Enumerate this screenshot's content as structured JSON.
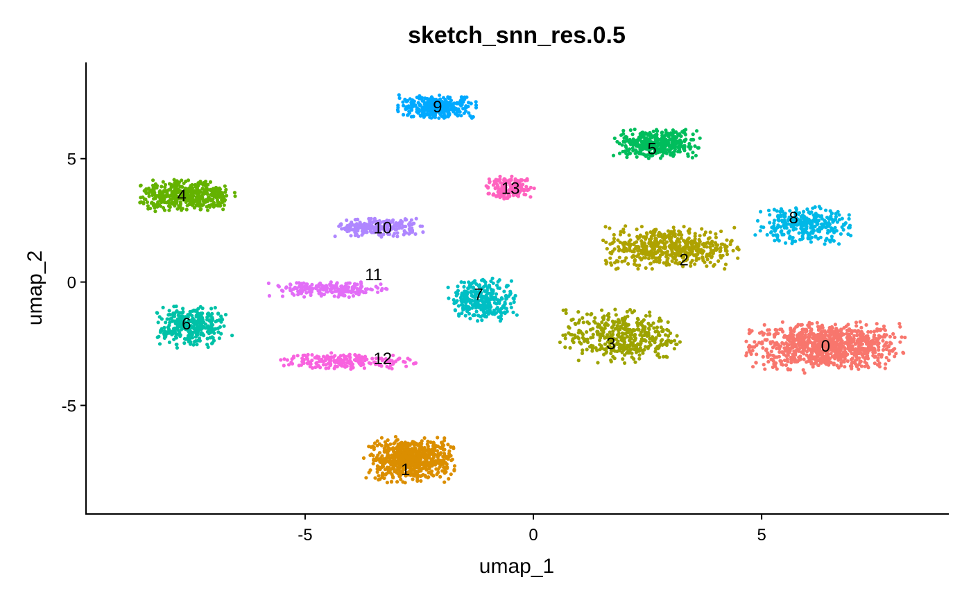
{
  "chart_data": {
    "type": "scatter",
    "title": "sketch_snn_res.0.5",
    "xlabel": "umap_1",
    "ylabel": "umap_2",
    "xlim": [
      -9.8,
      9.1
    ],
    "ylim": [
      -9.4,
      8.9
    ],
    "x_ticks": [
      -5,
      0,
      5
    ],
    "x_tick_labels": [
      "-5",
      "0",
      "5"
    ],
    "y_ticks": [
      -5,
      0,
      5
    ],
    "y_tick_labels": [
      "-5",
      "0",
      "5"
    ],
    "grid": false,
    "legend": "none",
    "point_note": "each series lists approximate cluster centroid and the cluster label position",
    "series": [
      {
        "name": "0",
        "color": "#F8766D",
        "label_pos": [
          6.4,
          -2.6
        ],
        "centroid": [
          6.4,
          -2.6
        ],
        "spread": [
          1.6,
          0.9
        ],
        "n": 900
      },
      {
        "name": "1",
        "color": "#DB8E00",
        "label_pos": [
          -2.8,
          -7.6
        ],
        "centroid": [
          -2.7,
          -7.2
        ],
        "spread": [
          0.9,
          0.85
        ],
        "n": 650
      },
      {
        "name": "2",
        "color": "#AEA200",
        "label_pos": [
          3.3,
          0.9
        ],
        "centroid": [
          3.0,
          1.4
        ],
        "spread": [
          1.4,
          0.8
        ],
        "n": 500
      },
      {
        "name": "3",
        "color": "#9DA300",
        "label_pos": [
          1.7,
          -2.5
        ],
        "centroid": [
          1.9,
          -2.2
        ],
        "spread": [
          1.2,
          1.0
        ],
        "n": 420
      },
      {
        "name": "4",
        "color": "#64B200",
        "label_pos": [
          -7.7,
          3.5
        ],
        "centroid": [
          -7.6,
          3.5
        ],
        "spread": [
          1.0,
          0.6
        ],
        "n": 420
      },
      {
        "name": "5",
        "color": "#00BD5C",
        "label_pos": [
          2.6,
          5.4
        ],
        "centroid": [
          2.7,
          5.6
        ],
        "spread": [
          0.9,
          0.55
        ],
        "n": 380
      },
      {
        "name": "6",
        "color": "#00C1A7",
        "label_pos": [
          -7.6,
          -1.7
        ],
        "centroid": [
          -7.5,
          -1.8
        ],
        "spread": [
          0.7,
          0.8
        ],
        "n": 330
      },
      {
        "name": "7",
        "color": "#00BFC4",
        "label_pos": [
          -1.2,
          -0.5
        ],
        "centroid": [
          -1.1,
          -0.7
        ],
        "spread": [
          0.7,
          0.8
        ],
        "n": 300
      },
      {
        "name": "8",
        "color": "#00B8E7",
        "label_pos": [
          5.7,
          2.6
        ],
        "centroid": [
          5.9,
          2.3
        ],
        "spread": [
          1.0,
          0.7
        ],
        "n": 300
      },
      {
        "name": "9",
        "color": "#00A9FF",
        "label_pos": [
          -2.1,
          7.1
        ],
        "centroid": [
          -2.1,
          7.1
        ],
        "spread": [
          0.8,
          0.45
        ],
        "n": 320
      },
      {
        "name": "10",
        "color": "#AF87FF",
        "label_pos": [
          -3.3,
          2.2
        ],
        "centroid": [
          -3.4,
          2.2
        ],
        "spread": [
          0.9,
          0.35
        ],
        "n": 220
      },
      {
        "name": "11",
        "color": "#E26EF7",
        "label_pos": [
          -3.5,
          0.3
        ],
        "centroid": [
          -4.5,
          -0.3
        ],
        "spread": [
          1.2,
          0.3
        ],
        "n": 200
      },
      {
        "name": "12",
        "color": "#F863DF",
        "label_pos": [
          -3.3,
          -3.1
        ],
        "centroid": [
          -4.1,
          -3.2
        ],
        "spread": [
          1.4,
          0.3
        ],
        "n": 200
      },
      {
        "name": "13",
        "color": "#FF62BF",
        "label_pos": [
          -0.5,
          3.8
        ],
        "centroid": [
          -0.5,
          3.8
        ],
        "spread": [
          0.5,
          0.45
        ],
        "n": 160
      }
    ]
  }
}
